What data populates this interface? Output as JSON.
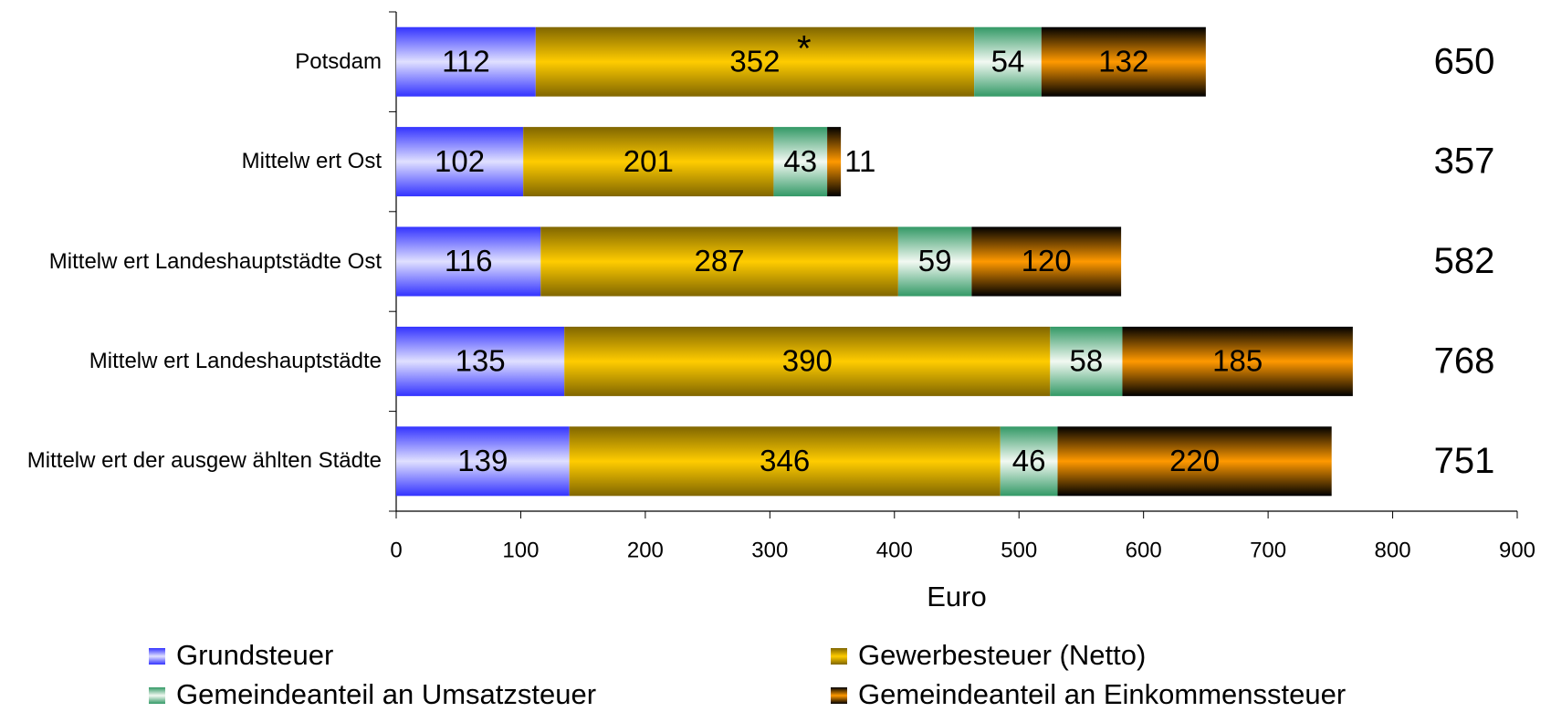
{
  "chart_data": {
    "type": "bar",
    "orientation": "horizontal",
    "stacked": true,
    "categories": [
      "Potsdam",
      "Mittelw ert Ost",
      "Mittelw ert Landeshauptstädte Ost",
      "Mittelw ert Landeshauptstädte",
      "Mittelw ert der ausgew ählten Städte"
    ],
    "series": [
      {
        "name": "Grundsteuer",
        "color": "#e0e0ff",
        "edge_color": "#3333ff",
        "values": [
          112,
          102,
          116,
          135,
          139
        ]
      },
      {
        "name": "Gewerbesteuer (Netto)",
        "color": "#ffcc00",
        "edge_color": "#806600",
        "values": [
          352,
          201,
          287,
          390,
          346
        ]
      },
      {
        "name": "Gemeindeanteil an Umsatzsteuer",
        "color": "#f2f9f2",
        "edge_color": "#339966",
        "values": [
          54,
          43,
          59,
          58,
          46
        ]
      },
      {
        "name": "Gemeindeanteil an Einkommenssteuer",
        "color": "#ff9900",
        "edge_color": "#000000",
        "values": [
          132,
          11,
          120,
          185,
          220
        ]
      }
    ],
    "totals": [
      650,
      357,
      582,
      768,
      751
    ],
    "annotation": "*",
    "xlabel": "Euro",
    "xlim": [
      0,
      900
    ],
    "xticks": [
      0,
      100,
      200,
      300,
      400,
      500,
      600,
      700,
      800,
      900
    ],
    "grid": false,
    "legend": "bottom"
  }
}
